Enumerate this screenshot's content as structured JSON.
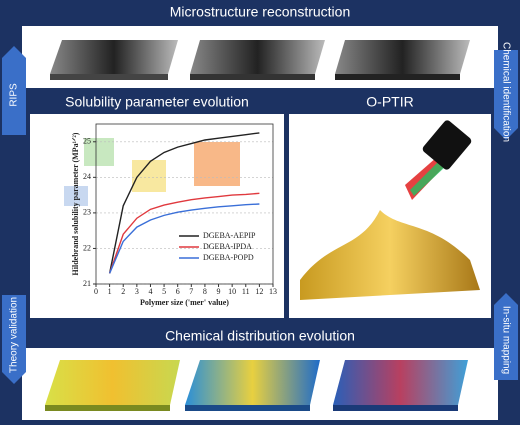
{
  "header": {
    "title": "Microstructure reconstruction"
  },
  "side_labels": {
    "left_top": "RIPS",
    "right_top": "Chemical identification",
    "left_bottom": "Theory validation",
    "right_bottom": "In-situ mapping"
  },
  "panels": {
    "left": {
      "title": "Solubility parameter evolution"
    },
    "right": {
      "title": "O-PTIR"
    },
    "bottom": {
      "title": "Chemical distribution evolution"
    }
  },
  "chart_data": {
    "type": "line",
    "x_label": "Polymer size ('mer' value)",
    "y_label": "Hildebrand solubility parameter (MPa¹ᐟ²)",
    "x": [
      1,
      2,
      3,
      4,
      5,
      6,
      7,
      8,
      9,
      10,
      11,
      12
    ],
    "series": [
      {
        "name": "DGEBA-AEPIP",
        "color": "#222222",
        "values": [
          21.3,
          23.2,
          24.0,
          24.45,
          24.7,
          24.85,
          24.95,
          25.05,
          25.1,
          25.15,
          25.2,
          25.25
        ]
      },
      {
        "name": "DGEBA-IPDA",
        "color": "#e0393e",
        "values": [
          21.3,
          22.4,
          22.85,
          23.1,
          23.22,
          23.3,
          23.37,
          23.42,
          23.46,
          23.5,
          23.52,
          23.55
        ]
      },
      {
        "name": "DGEBA-POPD",
        "color": "#3a6fd8",
        "values": [
          21.3,
          22.2,
          22.6,
          22.8,
          22.93,
          23.02,
          23.08,
          23.13,
          23.17,
          23.2,
          23.23,
          23.25
        ]
      }
    ],
    "xlim": [
      0,
      13
    ],
    "xticks": [
      0,
      1,
      2,
      3,
      4,
      5,
      6,
      7,
      8,
      9,
      10,
      11,
      12,
      13
    ],
    "ylim": [
      21,
      25.5
    ],
    "yticks": [
      21,
      22,
      23,
      24,
      25
    ],
    "grid": true,
    "legend": "lower right"
  }
}
